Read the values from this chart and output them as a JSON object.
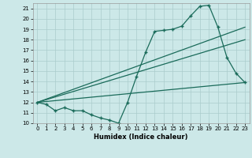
{
  "xlabel": "Humidex (Indice chaleur)",
  "background_color": "#cce8e8",
  "grid_color": "#aacccc",
  "line_color": "#1a6b5a",
  "xlim": [
    -0.5,
    23.5
  ],
  "ylim": [
    10,
    21.5
  ],
  "xticks": [
    0,
    1,
    2,
    3,
    4,
    5,
    6,
    7,
    8,
    9,
    10,
    11,
    12,
    13,
    14,
    15,
    16,
    17,
    18,
    19,
    20,
    21,
    22,
    23
  ],
  "yticks": [
    10,
    11,
    12,
    13,
    14,
    15,
    16,
    17,
    18,
    19,
    20,
    21
  ],
  "series1_x": [
    0,
    1,
    2,
    3,
    4,
    5,
    6,
    7,
    8,
    9,
    10,
    11,
    12,
    13,
    14,
    15,
    16,
    17,
    18,
    19,
    20,
    21,
    22,
    23
  ],
  "series1_y": [
    12.0,
    11.8,
    11.2,
    11.5,
    11.2,
    11.2,
    10.8,
    10.5,
    10.3,
    10.0,
    12.0,
    14.5,
    16.8,
    18.8,
    18.9,
    19.0,
    19.3,
    20.3,
    21.2,
    21.3,
    19.2,
    16.3,
    14.8,
    13.9
  ],
  "series2_x": [
    0,
    23
  ],
  "series2_y": [
    12.0,
    19.2
  ],
  "series3_x": [
    0,
    23
  ],
  "series3_y": [
    12.0,
    18.0
  ],
  "series4_x": [
    0,
    23
  ],
  "series4_y": [
    12.0,
    13.9
  ]
}
